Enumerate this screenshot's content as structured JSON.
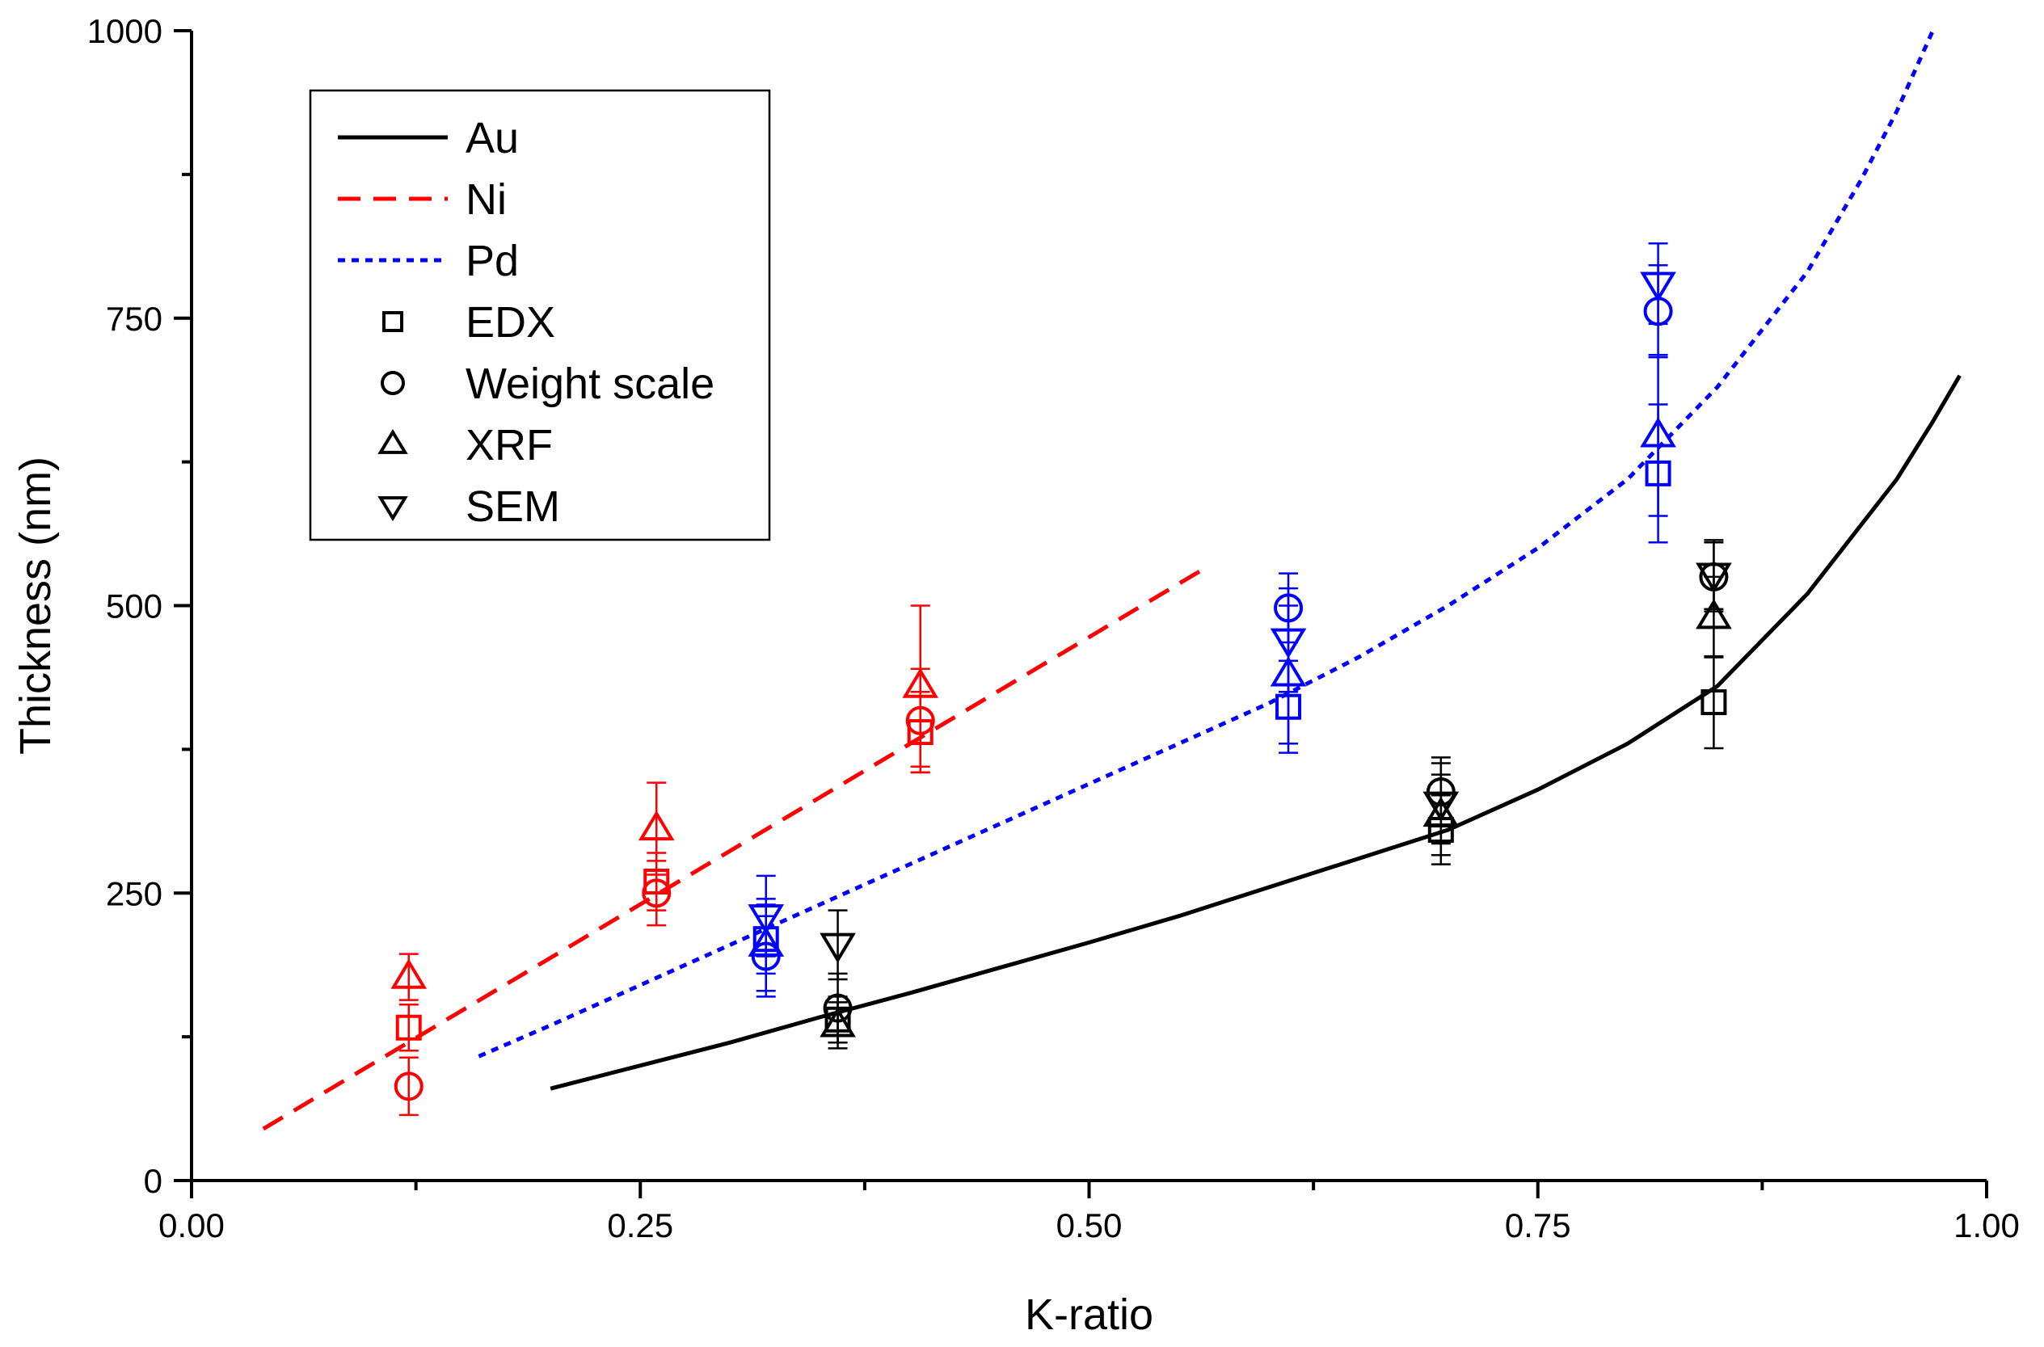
{
  "chart_data": {
    "type": "scatter",
    "title": "",
    "xlabel": "K-ratio",
    "ylabel": "Thickness (nm)",
    "xlim": [
      0.0,
      1.0
    ],
    "ylim": [
      0,
      1000
    ],
    "x_ticks": [
      {
        "value": 0.0,
        "label": "0.00"
      },
      {
        "value": 0.25,
        "label": "0.25"
      },
      {
        "value": 0.5,
        "label": "0.50"
      },
      {
        "value": 0.75,
        "label": "0.75"
      },
      {
        "value": 1.0,
        "label": "1.00"
      }
    ],
    "y_ticks": [
      {
        "value": 0,
        "label": "0"
      },
      {
        "value": 250,
        "label": "250"
      },
      {
        "value": 500,
        "label": "500"
      },
      {
        "value": 750,
        "label": "750"
      },
      {
        "value": 1000,
        "label": "1000"
      }
    ],
    "legend": {
      "position": "top-left",
      "entries": [
        {
          "label": "Au",
          "kind": "line",
          "style": "solid",
          "color": "#000000"
        },
        {
          "label": "Ni",
          "kind": "line",
          "style": "dashed",
          "color": "#ff0000"
        },
        {
          "label": "Pd",
          "kind": "line",
          "style": "dotted",
          "color": "#0000ff"
        },
        {
          "label": "EDX",
          "kind": "marker",
          "marker": "square",
          "color": "#000000"
        },
        {
          "label": "Weight scale",
          "kind": "marker",
          "marker": "circle",
          "color": "#000000"
        },
        {
          "label": "XRF",
          "kind": "marker",
          "marker": "triangle-up",
          "color": "#000000"
        },
        {
          "label": "SEM",
          "kind": "marker",
          "marker": "triangle-down",
          "color": "#000000"
        }
      ]
    },
    "curves": [
      {
        "name": "Au",
        "color": "#000000",
        "style": "solid",
        "x": [
          0.2,
          0.25,
          0.3,
          0.35,
          0.4,
          0.45,
          0.5,
          0.55,
          0.6,
          0.65,
          0.7,
          0.75,
          0.8,
          0.85,
          0.9,
          0.93,
          0.95,
          0.97,
          0.985
        ],
        "y": [
          80,
          100,
          120,
          142,
          163,
          185,
          207,
          230,
          255,
          280,
          305,
          340,
          380,
          430,
          510,
          570,
          610,
          660,
          700
        ]
      },
      {
        "name": "Ni",
        "color": "#ff0000",
        "style": "dashed",
        "x": [
          0.04,
          0.565
        ],
        "y": [
          45,
          533
        ]
      },
      {
        "name": "Pd",
        "color": "#0000ff",
        "style": "dotted",
        "x": [
          0.16,
          0.2,
          0.25,
          0.3,
          0.35,
          0.4,
          0.45,
          0.5,
          0.55,
          0.6,
          0.65,
          0.7,
          0.75,
          0.8,
          0.85,
          0.9,
          0.93,
          0.95,
          0.97
        ],
        "y": [
          108,
          135,
          170,
          205,
          240,
          275,
          310,
          345,
          380,
          415,
          455,
          500,
          550,
          610,
          690,
          790,
          870,
          930,
          1000
        ]
      }
    ],
    "series": [
      {
        "name": "Ni EDX",
        "element": "Ni",
        "method": "EDX",
        "marker": "square",
        "color": "#ff0000",
        "x": [
          0.121,
          0.259,
          0.406
        ],
        "y": [
          133,
          260,
          390
        ],
        "err": [
          20,
          25,
          35
        ]
      },
      {
        "name": "Ni Weight scale",
        "element": "Ni",
        "method": "Weight scale",
        "marker": "circle",
        "color": "#ff0000",
        "x": [
          0.121,
          0.259,
          0.406
        ],
        "y": [
          82,
          250,
          400
        ],
        "err": [
          25,
          28,
          45
        ]
      },
      {
        "name": "Ni XRF",
        "element": "Ni",
        "method": "XRF",
        "marker": "triangle-up",
        "color": "#ff0000",
        "x": [
          0.121,
          0.259,
          0.406
        ],
        "y": [
          177,
          306,
          430
        ],
        "err": [
          20,
          40,
          70
        ]
      },
      {
        "name": "Pd EDX",
        "element": "Pd",
        "method": "EDX",
        "marker": "square",
        "color": "#0000ff",
        "x": [
          0.32,
          0.611,
          0.817
        ],
        "y": [
          210,
          412,
          615
        ],
        "err": [
          30,
          40,
          60
        ]
      },
      {
        "name": "Pd Weight scale",
        "element": "Pd",
        "method": "Weight scale",
        "marker": "circle",
        "color": "#0000ff",
        "x": [
          0.32,
          0.611,
          0.817
        ],
        "y": [
          195,
          498,
          756
        ],
        "err": [
          35,
          30,
          40
        ]
      },
      {
        "name": "Pd XRF",
        "element": "Pd",
        "method": "XRF",
        "marker": "triangle-up",
        "color": "#0000ff",
        "x": [
          0.32,
          0.611,
          0.817
        ],
        "y": [
          205,
          440,
          648
        ],
        "err": [
          40,
          60,
          70
        ]
      },
      {
        "name": "Pd SEM",
        "element": "Pd",
        "method": "SEM",
        "marker": "triangle-down",
        "color": "#0000ff",
        "x": [
          0.32,
          0.611,
          0.817
        ],
        "y": [
          230,
          470,
          780
        ],
        "err": [
          35,
          45,
          35
        ]
      },
      {
        "name": "Au EDX",
        "element": "Au",
        "method": "EDX",
        "marker": "square",
        "color": "#000000",
        "x": [
          0.36,
          0.696,
          0.848
        ],
        "y": [
          140,
          305,
          416
        ],
        "err": [
          20,
          30,
          40
        ]
      },
      {
        "name": "Au Weight scale",
        "element": "Au",
        "method": "Weight scale",
        "marker": "circle",
        "color": "#000000",
        "x": [
          0.36,
          0.696,
          0.848
        ],
        "y": [
          150,
          338,
          525
        ],
        "err": [
          30,
          30,
          30
        ]
      },
      {
        "name": "Au XRF",
        "element": "Au",
        "method": "XRF",
        "marker": "triangle-up",
        "color": "#000000",
        "x": [
          0.36,
          0.696,
          0.848
        ],
        "y": [
          135,
          318,
          490
        ],
        "err": [
          20,
          35,
          35
        ]
      },
      {
        "name": "Au SEM",
        "element": "Au",
        "method": "SEM",
        "marker": "triangle-down",
        "color": "#000000",
        "x": [
          0.36,
          0.696,
          0.848
        ],
        "y": [
          205,
          328,
          527
        ],
        "err": [
          30,
          35,
          30
        ]
      }
    ]
  }
}
